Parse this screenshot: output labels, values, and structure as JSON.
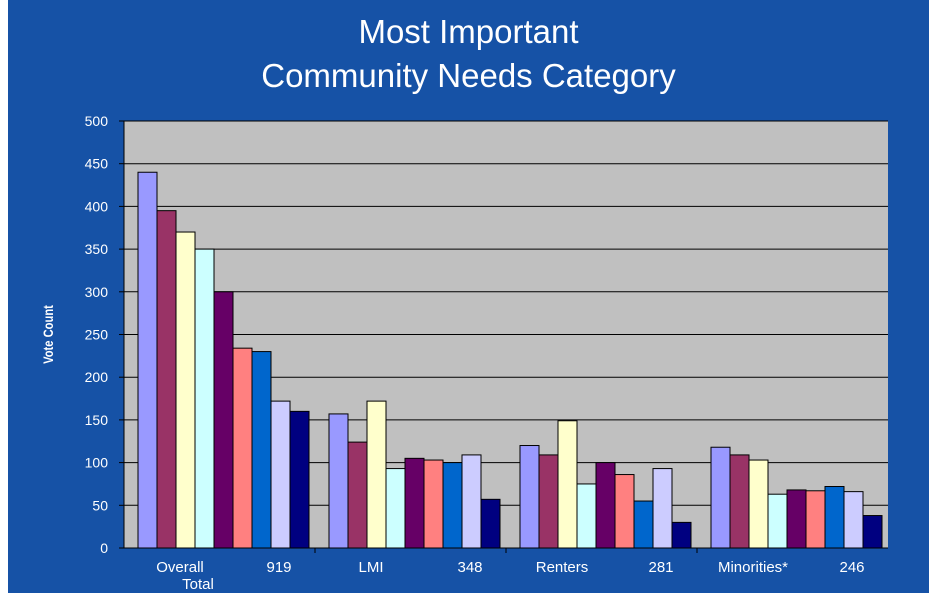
{
  "chart_data": {
    "type": "bar",
    "title": [
      "Most Important",
      "Community Needs Category"
    ],
    "ylabel": "Vote Count",
    "xlabel": "",
    "ylim": [
      0,
      500
    ],
    "y_ticks": [
      0,
      50,
      100,
      150,
      200,
      250,
      300,
      350,
      400,
      450,
      500
    ],
    "grid": true,
    "legend": "none",
    "groups": [
      {
        "label": [
          "Overall",
          "Total"
        ],
        "count_label": "919",
        "values": [
          440,
          395,
          370,
          350,
          300,
          234,
          230,
          172,
          160
        ]
      },
      {
        "label": [
          "LMI"
        ],
        "count_label": "348",
        "values": [
          157,
          124,
          172,
          93,
          105,
          103,
          100,
          109,
          57
        ]
      },
      {
        "label": [
          "Renters"
        ],
        "count_label": "281",
        "values": [
          120,
          109,
          149,
          75,
          100,
          86,
          55,
          93,
          30
        ]
      },
      {
        "label": [
          "Minorities*"
        ],
        "count_label": "246",
        "values": [
          118,
          109,
          103,
          63,
          68,
          67,
          72,
          66,
          38
        ]
      }
    ],
    "series_colors": [
      "#9999ff",
      "#993366",
      "#ffffcc",
      "#ccffff",
      "#660066",
      "#ff8080",
      "#0066cc",
      "#ccccff",
      "#000080"
    ],
    "colors": {
      "background": "#1652a6",
      "plot_area": "#c0c0c0",
      "text": "#ffffff"
    }
  }
}
